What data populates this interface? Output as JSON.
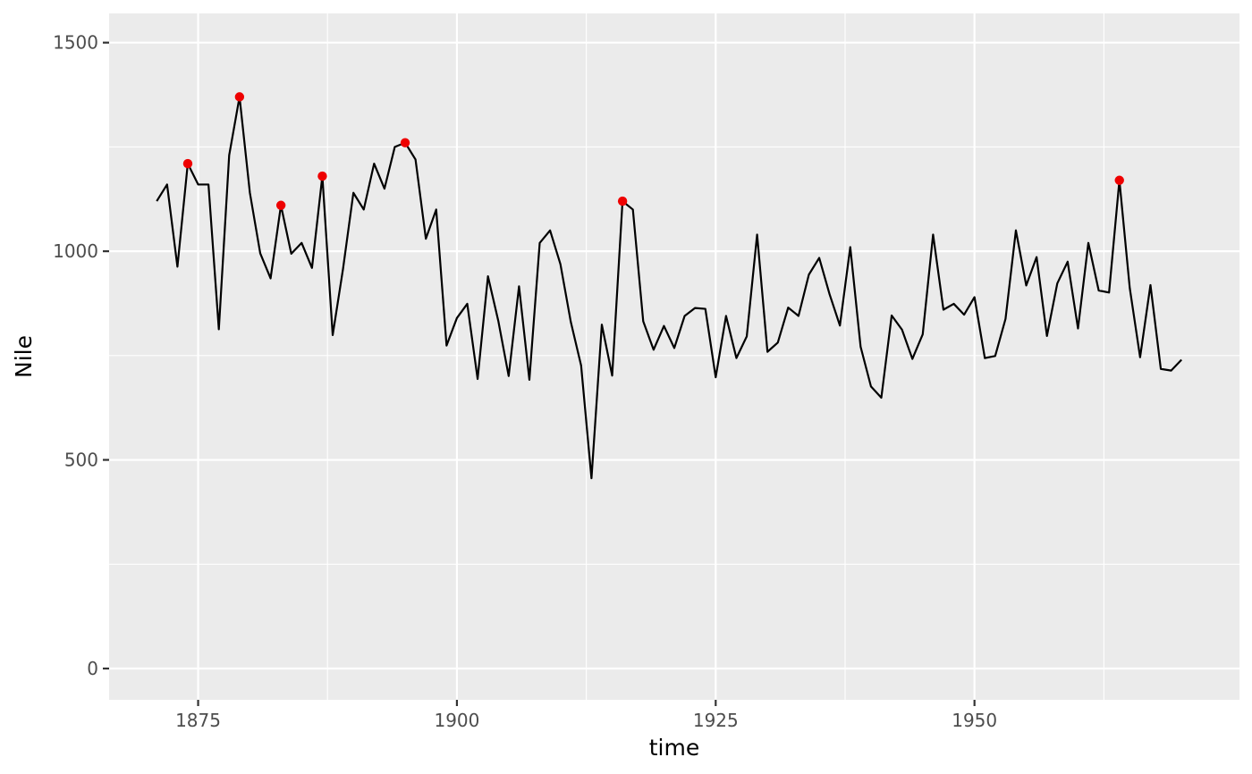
{
  "chart_data": {
    "type": "line",
    "xlabel": "time",
    "ylabel": "Nile",
    "xlim": [
      1866.4,
      1975.6
    ],
    "ylim": [
      -75,
      1570
    ],
    "x_ticks": [
      1875,
      1900,
      1925,
      1950
    ],
    "x_tick_labels": [
      "1875",
      "1900",
      "1925",
      "1950"
    ],
    "y_ticks": [
      0,
      500,
      1000,
      1500
    ],
    "y_tick_labels": [
      "0",
      "500",
      "1000",
      "1500"
    ],
    "grid": true,
    "legend": "none",
    "colors": {
      "panel_background": "#ebebeb",
      "grid": "#ffffff",
      "line": "#000000",
      "highlight_points": "#ee0000",
      "tick_text": "#4d4d4d",
      "tick_mark": "#333333"
    },
    "series": [
      {
        "x": [
          1871,
          1872,
          1873,
          1874,
          1875,
          1876,
          1877,
          1878,
          1879,
          1880,
          1881,
          1882,
          1883,
          1884,
          1885,
          1886,
          1887,
          1888,
          1889,
          1890,
          1891,
          1892,
          1893,
          1894,
          1895,
          1896,
          1897,
          1898,
          1899,
          1900,
          1901,
          1902,
          1903,
          1904,
          1905,
          1906,
          1907,
          1908,
          1909,
          1910,
          1911,
          1912,
          1913,
          1914,
          1915,
          1916,
          1917,
          1918,
          1919,
          1920,
          1921,
          1922,
          1923,
          1924,
          1925,
          1926,
          1927,
          1928,
          1929,
          1930,
          1931,
          1932,
          1933,
          1934,
          1935,
          1936,
          1937,
          1938,
          1939,
          1940,
          1941,
          1942,
          1943,
          1944,
          1945,
          1946,
          1947,
          1948,
          1949,
          1950,
          1951,
          1952,
          1953,
          1954,
          1955,
          1956,
          1957,
          1958,
          1959,
          1960,
          1961,
          1962,
          1963,
          1964,
          1965,
          1966,
          1967,
          1968,
          1969,
          1970
        ],
        "values": [
          1120,
          1160,
          963,
          1210,
          1160,
          1160,
          813,
          1230,
          1370,
          1140,
          995,
          935,
          1110,
          994,
          1020,
          960,
          1180,
          799,
          958,
          1140,
          1100,
          1210,
          1150,
          1250,
          1260,
          1220,
          1030,
          1100,
          774,
          840,
          874,
          694,
          940,
          833,
          701,
          916,
          692,
          1020,
          1050,
          969,
          831,
          726,
          456,
          824,
          702,
          1120,
          1100,
          832,
          764,
          821,
          768,
          845,
          864,
          862,
          698,
          845,
          744,
          796,
          1040,
          759,
          781,
          865,
          845,
          944,
          984,
          897,
          822,
          1010,
          771,
          676,
          649,
          846,
          812,
          742,
          801,
          1040,
          860,
          874,
          848,
          890,
          744,
          749,
          838,
          1050,
          918,
          986,
          797,
          923,
          975,
          815,
          1020,
          906,
          901,
          1170,
          912,
          746,
          919,
          718,
          714,
          740
        ]
      }
    ],
    "highlight_points": [
      {
        "x": 1874,
        "y": 1210
      },
      {
        "x": 1879,
        "y": 1370
      },
      {
        "x": 1883,
        "y": 1110
      },
      {
        "x": 1887,
        "y": 1180
      },
      {
        "x": 1895,
        "y": 1260
      },
      {
        "x": 1916,
        "y": 1120
      },
      {
        "x": 1964,
        "y": 1170
      }
    ]
  }
}
